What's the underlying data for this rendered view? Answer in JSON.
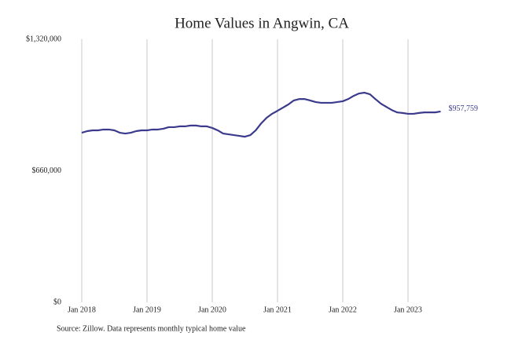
{
  "chart_data": {
    "type": "line",
    "title": "Home Values in Angwin, CA",
    "source": "Source: Zillow. Data represents monthly typical home value",
    "categories": [
      "Jan 2018",
      null,
      null,
      null,
      null,
      null,
      null,
      null,
      null,
      null,
      null,
      null,
      "Jan 2019",
      null,
      null,
      null,
      null,
      null,
      null,
      null,
      null,
      null,
      null,
      null,
      "Jan 2020",
      null,
      null,
      null,
      null,
      null,
      null,
      null,
      null,
      null,
      null,
      null,
      "Jan 2021",
      null,
      null,
      null,
      null,
      null,
      null,
      null,
      null,
      null,
      null,
      null,
      "Jan 2022",
      null,
      null,
      null,
      null,
      null,
      null,
      null,
      null,
      null,
      null,
      null,
      "Jan 2023",
      null,
      null,
      null,
      null,
      null,
      null
    ],
    "series": [
      {
        "name": "Home value",
        "color": "#3b3a8c",
        "values": [
          851000,
          859000,
          863000,
          863000,
          867000,
          867000,
          863000,
          851000,
          847000,
          851000,
          859000,
          863000,
          863000,
          867000,
          867000,
          871000,
          879000,
          879000,
          883000,
          883000,
          887000,
          887000,
          883000,
          883000,
          875000,
          863000,
          847000,
          843000,
          839000,
          835000,
          831000,
          839000,
          863000,
          898000,
          926000,
          946000,
          961000,
          977000,
          993000,
          1013000,
          1020000,
          1020000,
          1013000,
          1005000,
          1001000,
          1001000,
          1001000,
          1005000,
          1009000,
          1020000,
          1036000,
          1048000,
          1052000,
          1044000,
          1020000,
          997000,
          981000,
          965000,
          953000,
          950000,
          946000,
          946000,
          950000,
          953000,
          953000,
          953000,
          957759
        ],
        "value_labels": [
          null,
          null,
          null,
          null,
          null,
          null,
          null,
          null,
          null,
          null,
          null,
          null,
          null,
          null,
          null,
          null,
          null,
          null,
          null,
          null,
          null,
          null,
          null,
          null,
          null,
          null,
          null,
          null,
          null,
          null,
          null,
          null,
          null,
          null,
          null,
          null,
          null,
          null,
          null,
          null,
          null,
          null,
          null,
          null,
          null,
          null,
          null,
          null,
          null,
          null,
          null,
          null,
          null,
          null,
          null,
          null,
          null,
          null,
          null,
          null,
          null,
          null,
          null,
          null,
          null,
          null,
          "$957,759"
        ]
      }
    ],
    "ylim": [
      0,
      1320000
    ],
    "yticks": [
      {
        "value": 0,
        "label": "$0"
      },
      {
        "value": 660000,
        "label": "$660,000"
      },
      {
        "value": 1320000,
        "label": "$1,320,000"
      }
    ],
    "grid": "x"
  }
}
